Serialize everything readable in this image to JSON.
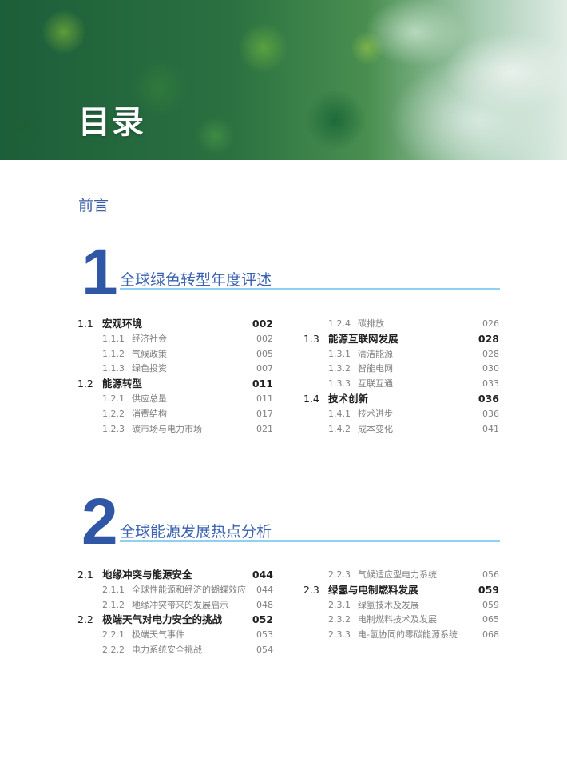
{
  "header": {
    "title": "目录"
  },
  "preface": "前言",
  "chapters": [
    {
      "number": "1",
      "title": "全球绿色转型年度评述",
      "columns": [
        [
          {
            "level": 1,
            "num": "1.1",
            "title": "宏观环境",
            "page": "002"
          },
          {
            "level": 2,
            "num": "1.1.1",
            "title": "经济社会",
            "page": "002"
          },
          {
            "level": 2,
            "num": "1.1.2",
            "title": "气候政策",
            "page": "005"
          },
          {
            "level": 2,
            "num": "1.1.3",
            "title": "绿色投资",
            "page": "007"
          },
          {
            "level": 1,
            "num": "1.2",
            "title": "能源转型",
            "page": "011"
          },
          {
            "level": 2,
            "num": "1.2.1",
            "title": "供应总量",
            "page": "011"
          },
          {
            "level": 2,
            "num": "1.2.2",
            "title": "消费结构",
            "page": "017"
          },
          {
            "level": 2,
            "num": "1.2.3",
            "title": "碳市场与电力市场",
            "page": "021"
          }
        ],
        [
          {
            "level": 2,
            "num": "1.2.4",
            "title": "碳排放",
            "page": "026"
          },
          {
            "level": 1,
            "num": "1.3",
            "title": "能源互联网发展",
            "page": "028"
          },
          {
            "level": 2,
            "num": "1.3.1",
            "title": "清洁能源",
            "page": "028"
          },
          {
            "level": 2,
            "num": "1.3.2",
            "title": "智能电网",
            "page": "030"
          },
          {
            "level": 2,
            "num": "1.3.3",
            "title": "互联互通",
            "page": "033"
          },
          {
            "level": 1,
            "num": "1.4",
            "title": "技术创新",
            "page": "036"
          },
          {
            "level": 2,
            "num": "1.4.1",
            "title": "技术进步",
            "page": "036"
          },
          {
            "level": 2,
            "num": "1.4.2",
            "title": "成本变化",
            "page": "041"
          }
        ]
      ]
    },
    {
      "number": "2",
      "title": "全球能源发展热点分析",
      "columns": [
        [
          {
            "level": 1,
            "num": "2.1",
            "title": "地缘冲突与能源安全",
            "page": "044"
          },
          {
            "level": 2,
            "num": "2.1.1",
            "title": "全球性能源和经济的蝴蝶效应",
            "page": "044"
          },
          {
            "level": 2,
            "num": "2.1.2",
            "title": "地缘冲突带来的发展启示",
            "page": "048"
          },
          {
            "level": 1,
            "num": "2.2",
            "title": "极端天气对电力安全的挑战",
            "page": "052"
          },
          {
            "level": 2,
            "num": "2.2.1",
            "title": "极端天气事件",
            "page": "053"
          },
          {
            "level": 2,
            "num": "2.2.2",
            "title": "电力系统安全挑战",
            "page": "054"
          }
        ],
        [
          {
            "level": 2,
            "num": "2.2.3",
            "title": "气候适应型电力系统",
            "page": "056"
          },
          {
            "level": 1,
            "num": "2.3",
            "title": "绿氢与电制燃料发展",
            "page": "059"
          },
          {
            "level": 2,
            "num": "2.3.1",
            "title": "绿氢技术及发展",
            "page": "059"
          },
          {
            "level": 2,
            "num": "2.3.2",
            "title": "电制燃料技术及发展",
            "page": "065"
          },
          {
            "level": 2,
            "num": "2.3.3",
            "title": "电-氢协同的零碳能源系统",
            "page": "068"
          }
        ]
      ]
    }
  ],
  "colors": {
    "accent": "#2f57a5",
    "rule": "#8fd0f3"
  }
}
